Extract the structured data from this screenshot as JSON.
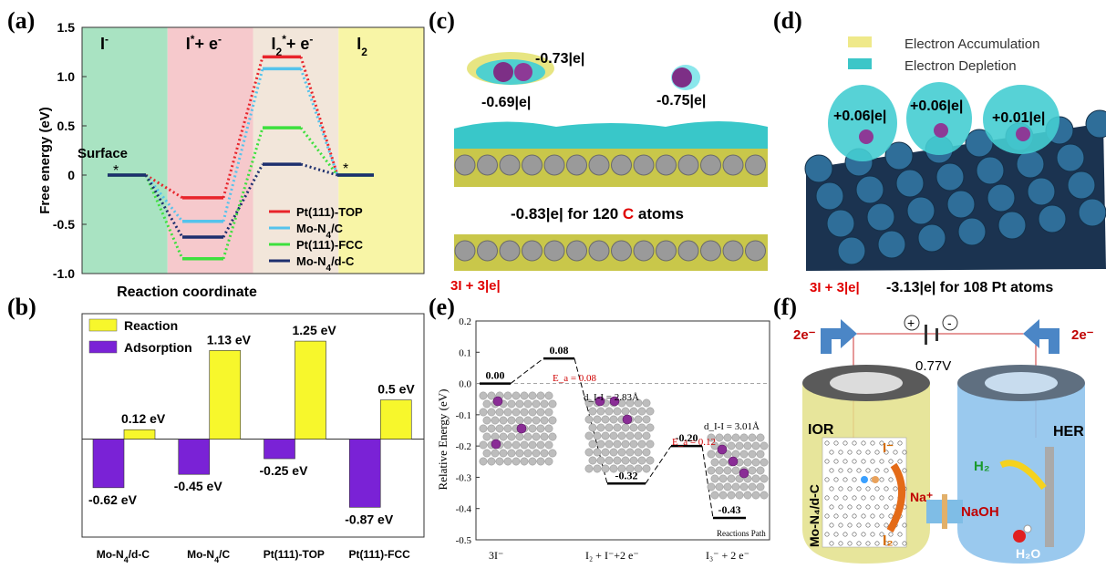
{
  "panel_labels": {
    "a": "(a)",
    "b": "(b)",
    "c": "(c)",
    "d": "(d)",
    "e": "(e)",
    "f": "(f)"
  },
  "chart_data": [
    {
      "id": "a",
      "type": "line",
      "ylabel": "Free energy (eV)",
      "xlabel": "Reaction coordinate",
      "ylim": [
        -1.0,
        1.5
      ],
      "yticks": [
        "1.5",
        "1.0",
        "0.5",
        "0",
        "-0.5",
        "-1.0"
      ],
      "stages": [
        {
          "label_main": "I",
          "label_sup": "-",
          "color": "#a9e3c2"
        },
        {
          "label_main": "I",
          "label_sup": "*",
          "label_rest": "+ e",
          "label_sup2": "-",
          "color": "#f6c9cc"
        },
        {
          "label_main": "I",
          "label_sub": "2",
          "label_sup": "*",
          "label_rest": "+ e",
          "label_sup2": "-",
          "color": "#f2e6da"
        },
        {
          "label_main": "I",
          "label_sub": "2",
          "color": "#f8f5a6"
        }
      ],
      "surface_label": "Surface",
      "star_label": "*",
      "series": [
        {
          "name": "Pt(111)-TOP",
          "color": "#e8242b",
          "values": [
            0,
            -0.23,
            1.2,
            0
          ]
        },
        {
          "name": "Mo-N4/C",
          "name_main": "Mo-N",
          "name_sub": "4",
          "name_rest": "/C",
          "color": "#55c3ec",
          "values": [
            0,
            -0.47,
            1.08,
            0
          ]
        },
        {
          "name": "Pt(111)-FCC",
          "color": "#3de03d",
          "values": [
            0,
            -0.85,
            0.48,
            0
          ]
        },
        {
          "name": "Mo-N4/d-C",
          "name_main": "Mo-N",
          "name_sub": "4",
          "name_rest": "/d-C",
          "color": "#1d2f6e",
          "values": [
            0,
            -0.63,
            0.11,
            0
          ]
        }
      ]
    },
    {
      "id": "b",
      "type": "bar",
      "categories": [
        {
          "main": "Mo-N",
          "sub": "4",
          "rest": "/d-C"
        },
        {
          "main": "Mo-N",
          "sub": "4",
          "rest": "/C"
        },
        {
          "main": "Pt(111)-TOP",
          "sub": "",
          "rest": ""
        },
        {
          "main": "Pt(111)-FCC",
          "sub": "",
          "rest": ""
        }
      ],
      "ylim": [
        -1.25,
        1.6
      ],
      "legend": [
        {
          "name": "Reaction",
          "color": "#f7f72c"
        },
        {
          "name": "Adsorption",
          "color": "#7a22d6"
        }
      ],
      "series": [
        {
          "name": "Adsorption",
          "color": "#7a22d6",
          "values": [
            -0.62,
            -0.45,
            -0.25,
            -0.87
          ],
          "labels": [
            "-0.62 eV",
            "-0.45 eV",
            "-0.25 eV",
            "-0.87 eV"
          ]
        },
        {
          "name": "Reaction",
          "color": "#f7f72c",
          "values": [
            0.12,
            1.13,
            1.25,
            0.5
          ],
          "labels": [
            "0.12 eV",
            "1.13 eV",
            "1.25 eV",
            "0.5 eV"
          ]
        }
      ]
    },
    {
      "id": "e",
      "type": "line",
      "ylabel": "Relative Energy (eV)",
      "ylim": [
        -0.5,
        0.2
      ],
      "yticks": [
        "0.2",
        "0.1",
        "0.0",
        "-0.1",
        "-0.2",
        "-0.3",
        "-0.4",
        "-0.5"
      ],
      "levels": [
        {
          "x": 0,
          "value": 0.0,
          "label": "0.00"
        },
        {
          "x": 1,
          "value": 0.08,
          "label": "0.08"
        },
        {
          "x": 2,
          "value": -0.32,
          "label": "-0.32"
        },
        {
          "x": 3,
          "value": -0.2,
          "label": "-0.20"
        },
        {
          "x": 4,
          "value": -0.43,
          "label": "-0.43"
        }
      ],
      "barrier1": "E_a = 0.08",
      "barrier2": "E_a = 0.12",
      "d1": "d_I-I = 2.83Å",
      "d2": "d_I-I = 3.01Å",
      "reactions_path": "Reactions Path",
      "xcats": [
        "3I⁻",
        "I₂ + I⁻+2 e⁻",
        "I₃⁻ + 2 e⁻"
      ]
    }
  ],
  "panel_c": {
    "charge1": "-0.73|e|",
    "charge2": "-0.69|e|",
    "charge3": "-0.75|e|",
    "summary_prefix": "-0.83|e| for 120 ",
    "summary_element": "C",
    "summary_suffix": " atoms",
    "footer": "3I + 3|e|"
  },
  "panel_d": {
    "legend_accum": "Electron Accumulation",
    "legend_depl": "Electron Depletion",
    "charge1": "+0.06|e|",
    "charge2": "+0.06|e|",
    "charge3": "+0.01|e|",
    "footer": "3I + 3|e|",
    "summary": "-3.13|e| for 108 Pt atoms"
  },
  "panel_f": {
    "electron_left": "2e⁻",
    "electron_right": "2e⁻",
    "plus": "+",
    "minus": "-",
    "voltage": "0.77V",
    "ior": "IOR",
    "her": "HER",
    "catalyst": "Mo-N₄/d-C",
    "iodide": "I⁻",
    "iodine": "I₂",
    "sodium": "Na⁺",
    "naoh": "NaOH",
    "h2": "H₂",
    "h2o": "H₂O"
  }
}
